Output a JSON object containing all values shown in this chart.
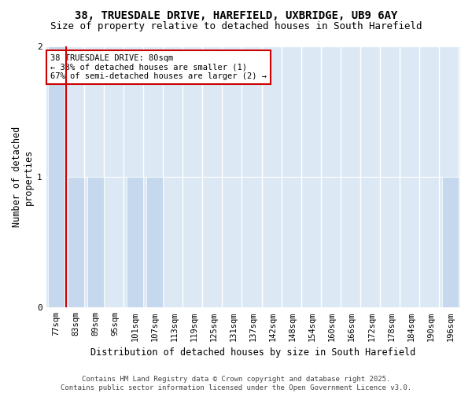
{
  "title": "38, TRUESDALE DRIVE, HAREFIELD, UXBRIDGE, UB9 6AY",
  "subtitle": "Size of property relative to detached houses in South Harefield",
  "xlabel": "Distribution of detached houses by size in South Harefield",
  "ylabel": "Number of detached\nproperties",
  "categories": [
    "77sqm",
    "83sqm",
    "89sqm",
    "95sqm",
    "101sqm",
    "107sqm",
    "113sqm",
    "119sqm",
    "125sqm",
    "131sqm",
    "137sqm",
    "142sqm",
    "148sqm",
    "154sqm",
    "160sqm",
    "166sqm",
    "172sqm",
    "178sqm",
    "184sqm",
    "190sqm",
    "196sqm"
  ],
  "values": [
    2,
    1,
    1,
    0,
    1,
    1,
    0,
    0,
    0,
    0,
    0,
    0,
    0,
    0,
    0,
    0,
    0,
    0,
    0,
    0,
    1
  ],
  "bar_color": "#c5d8ed",
  "vline_color": "#cc0000",
  "vline_position": 0.5,
  "fig_bg_color": "#ffffff",
  "plot_bg_color": "#dce9f5",
  "ylim": [
    0,
    2.0
  ],
  "yticks": [
    0,
    1,
    2
  ],
  "annotation_text": "38 TRUESDALE DRIVE: 80sqm\n← 33% of detached houses are smaller (1)\n67% of semi-detached houses are larger (2) →",
  "annotation_box_color": "#cc0000",
  "footer1": "Contains HM Land Registry data © Crown copyright and database right 2025.",
  "footer2": "Contains public sector information licensed under the Open Government Licence v3.0.",
  "title_fontsize": 10,
  "subtitle_fontsize": 9,
  "axis_label_fontsize": 8.5,
  "tick_fontsize": 7.5,
  "annotation_fontsize": 7.5,
  "footer_fontsize": 6.5
}
